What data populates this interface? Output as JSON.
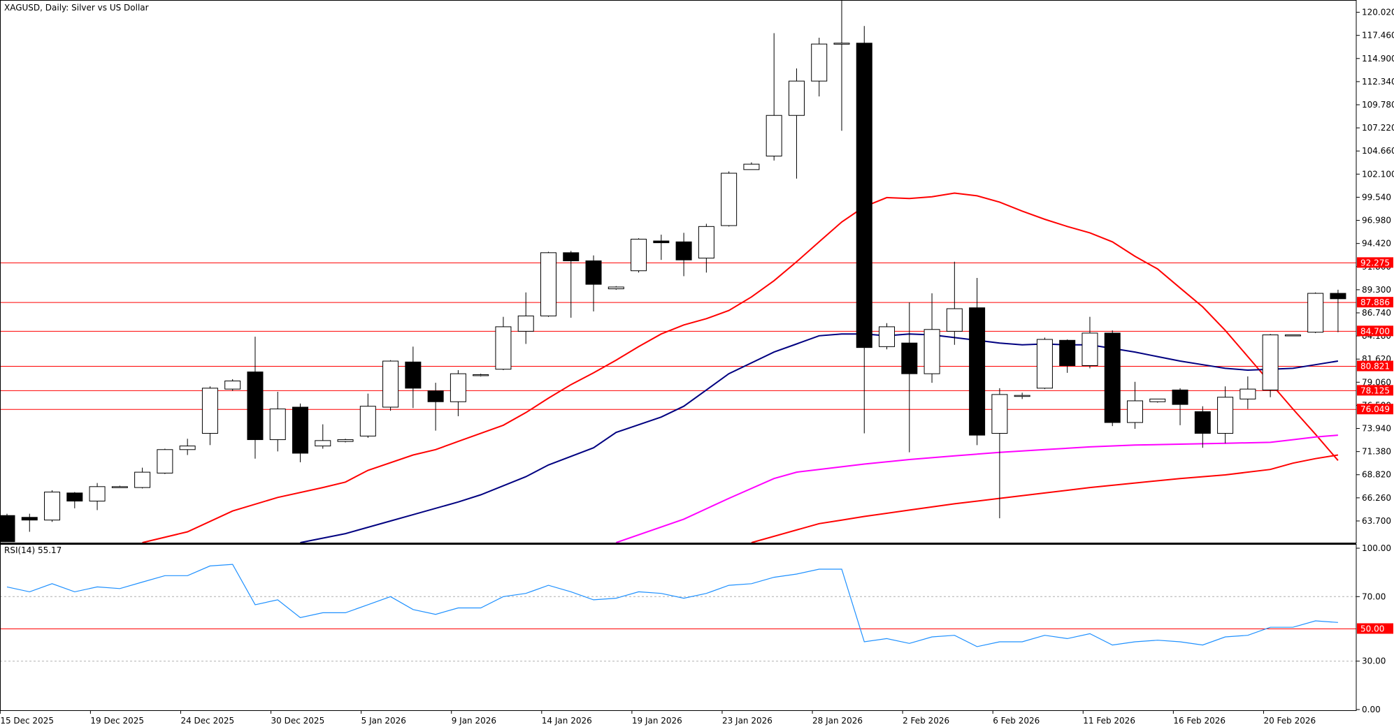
{
  "chart_data": {
    "type": "candlestick",
    "symbol_label": "XAGUSD, Daily:  Silver vs US Dollar",
    "price_ticks": [
      "120.020",
      "117.460",
      "114.900",
      "112.340",
      "109.780",
      "107.220",
      "104.660",
      "102.100",
      "99.540",
      "96.980",
      "94.420",
      "91.860",
      "89.300",
      "86.740",
      "84.180",
      "81.620",
      "79.060",
      "76.500",
      "73.940",
      "71.380",
      "68.820",
      "66.260",
      "63.700"
    ],
    "price_range": [
      61.3,
      121.3
    ],
    "date_labels": [
      "15 Dec 2025",
      "19 Dec 2025",
      "24 Dec 2025",
      "30 Dec 2025",
      "5 Jan 2026",
      "9 Jan 2026",
      "14 Jan 2026",
      "19 Jan 2026",
      "23 Jan 2026",
      "28 Jan 2026",
      "2 Feb 2026",
      "6 Feb 2026",
      "11 Feb 2026",
      "16 Feb 2026",
      "20 Feb 2026"
    ],
    "levels": [
      {
        "value": 92.275,
        "label": "92.275"
      },
      {
        "value": 87.886,
        "label": "87.886"
      },
      {
        "value": 84.7,
        "label": "84.700"
      },
      {
        "value": 80.821,
        "label": "80.821"
      },
      {
        "value": 78.125,
        "label": "78.125"
      },
      {
        "value": 76.049,
        "label": "76.049"
      }
    ],
    "level_color": "#ff0000",
    "candles": [
      {
        "o": 64.3,
        "h": 64.5,
        "l": 61.4,
        "c": 61.4
      },
      {
        "o": 64.1,
        "h": 64.5,
        "l": 62.5,
        "c": 63.8
      },
      {
        "o": 63.8,
        "h": 67.1,
        "l": 63.6,
        "c": 66.9
      },
      {
        "o": 66.8,
        "h": 66.9,
        "l": 65.1,
        "c": 65.9
      },
      {
        "o": 65.9,
        "h": 67.9,
        "l": 64.9,
        "c": 67.5
      },
      {
        "o": 67.4,
        "h": 67.6,
        "l": 67.4,
        "c": 67.5
      },
      {
        "o": 67.4,
        "h": 69.6,
        "l": 67.3,
        "c": 69.1
      },
      {
        "o": 69.0,
        "h": 71.7,
        "l": 68.9,
        "c": 71.6
      },
      {
        "o": 71.6,
        "h": 72.8,
        "l": 71.0,
        "c": 72.0
      },
      {
        "o": 73.4,
        "h": 78.6,
        "l": 72.1,
        "c": 78.4
      },
      {
        "o": 78.3,
        "h": 79.4,
        "l": 78.1,
        "c": 79.2
      },
      {
        "o": 80.2,
        "h": 84.1,
        "l": 70.6,
        "c": 72.7
      },
      {
        "o": 72.7,
        "h": 78.0,
        "l": 71.4,
        "c": 76.1
      },
      {
        "o": 76.3,
        "h": 76.7,
        "l": 70.2,
        "c": 71.2
      },
      {
        "o": 72.0,
        "h": 74.4,
        "l": 71.7,
        "c": 72.6
      },
      {
        "o": 72.5,
        "h": 72.8,
        "l": 72.4,
        "c": 72.7
      },
      {
        "o": 73.1,
        "h": 77.8,
        "l": 72.9,
        "c": 76.4
      },
      {
        "o": 76.3,
        "h": 81.5,
        "l": 75.9,
        "c": 81.4
      },
      {
        "o": 81.3,
        "h": 83.0,
        "l": 76.2,
        "c": 78.4
      },
      {
        "o": 78.1,
        "h": 79.0,
        "l": 73.7,
        "c": 76.9
      },
      {
        "o": 76.9,
        "h": 80.4,
        "l": 75.3,
        "c": 80.0
      },
      {
        "o": 79.9,
        "h": 80.0,
        "l": 79.7,
        "c": 79.9
      },
      {
        "o": 80.5,
        "h": 86.3,
        "l": 80.4,
        "c": 85.2
      },
      {
        "o": 84.7,
        "h": 89.0,
        "l": 83.3,
        "c": 86.4
      },
      {
        "o": 86.4,
        "h": 93.5,
        "l": 86.3,
        "c": 93.4
      },
      {
        "o": 93.4,
        "h": 93.6,
        "l": 86.2,
        "c": 92.5
      },
      {
        "o": 92.5,
        "h": 93.1,
        "l": 86.9,
        "c": 89.9
      },
      {
        "o": 89.4,
        "h": 89.7,
        "l": 89.3,
        "c": 89.6
      },
      {
        "o": 91.4,
        "h": 95.0,
        "l": 91.2,
        "c": 94.9
      },
      {
        "o": 94.7,
        "h": 95.4,
        "l": 92.6,
        "c": 94.5
      },
      {
        "o": 94.6,
        "h": 95.6,
        "l": 90.8,
        "c": 92.6
      },
      {
        "o": 92.8,
        "h": 96.6,
        "l": 91.2,
        "c": 96.3
      },
      {
        "o": 96.4,
        "h": 102.4,
        "l": 96.3,
        "c": 102.2
      },
      {
        "o": 102.6,
        "h": 103.4,
        "l": 102.6,
        "c": 103.2
      },
      {
        "o": 104.1,
        "h": 117.7,
        "l": 103.6,
        "c": 108.6
      },
      {
        "o": 108.6,
        "h": 113.8,
        "l": 101.6,
        "c": 112.4
      },
      {
        "o": 112.4,
        "h": 117.2,
        "l": 110.7,
        "c": 116.5
      },
      {
        "o": 116.5,
        "h": 121.6,
        "l": 106.9,
        "c": 116.6
      },
      {
        "o": 116.6,
        "h": 118.5,
        "l": 73.4,
        "c": 82.9
      },
      {
        "o": 83.0,
        "h": 85.6,
        "l": 82.7,
        "c": 85.2
      },
      {
        "o": 83.4,
        "h": 87.9,
        "l": 71.3,
        "c": 80.0
      },
      {
        "o": 80.0,
        "h": 88.9,
        "l": 79.0,
        "c": 84.9
      },
      {
        "o": 84.7,
        "h": 92.4,
        "l": 83.2,
        "c": 87.2
      },
      {
        "o": 87.3,
        "h": 90.6,
        "l": 72.1,
        "c": 73.2
      },
      {
        "o": 73.4,
        "h": 78.4,
        "l": 64.0,
        "c": 77.7
      },
      {
        "o": 77.5,
        "h": 77.9,
        "l": 77.2,
        "c": 77.6
      },
      {
        "o": 78.4,
        "h": 84.0,
        "l": 78.3,
        "c": 83.8
      },
      {
        "o": 83.7,
        "h": 83.8,
        "l": 80.1,
        "c": 80.9
      },
      {
        "o": 80.9,
        "h": 86.3,
        "l": 80.6,
        "c": 84.5
      },
      {
        "o": 84.5,
        "h": 84.8,
        "l": 74.2,
        "c": 74.6
      },
      {
        "o": 74.6,
        "h": 79.1,
        "l": 73.9,
        "c": 77.0
      },
      {
        "o": 76.9,
        "h": 77.2,
        "l": 76.8,
        "c": 77.2
      },
      {
        "o": 78.2,
        "h": 78.4,
        "l": 74.3,
        "c": 76.6
      },
      {
        "o": 75.8,
        "h": 76.4,
        "l": 71.8,
        "c": 73.4
      },
      {
        "o": 73.4,
        "h": 78.6,
        "l": 72.3,
        "c": 77.4
      },
      {
        "o": 77.2,
        "h": 79.7,
        "l": 76.1,
        "c": 78.3
      },
      {
        "o": 78.2,
        "h": 84.4,
        "l": 77.4,
        "c": 84.3
      },
      {
        "o": 84.3,
        "h": 84.3,
        "l": 84.2,
        "c": 84.3
      },
      {
        "o": 84.6,
        "h": 89.0,
        "l": 84.5,
        "c": 88.9
      },
      {
        "o": 88.9,
        "h": 89.3,
        "l": 84.6,
        "c": 88.3
      }
    ],
    "ma_series": [
      {
        "color": "#ff0000",
        "points": [
          [
            6,
            61.3
          ],
          [
            8,
            62.5
          ],
          [
            10,
            64.8
          ],
          [
            12,
            66.3
          ],
          [
            14,
            67.4
          ],
          [
            15,
            68.0
          ],
          [
            16,
            69.3
          ],
          [
            18,
            71.0
          ],
          [
            19,
            71.6
          ],
          [
            20,
            72.5
          ],
          [
            22,
            74.3
          ],
          [
            23,
            75.7
          ],
          [
            24,
            77.3
          ],
          [
            25,
            78.8
          ],
          [
            26,
            80.1
          ],
          [
            27,
            81.5
          ],
          [
            28,
            83.0
          ],
          [
            29,
            84.4
          ],
          [
            30,
            85.4
          ],
          [
            31,
            86.1
          ],
          [
            32,
            87.0
          ],
          [
            33,
            88.5
          ],
          [
            34,
            90.3
          ],
          [
            35,
            92.4
          ],
          [
            36,
            94.6
          ],
          [
            37,
            96.8
          ],
          [
            38,
            98.5
          ],
          [
            39,
            99.5
          ],
          [
            40,
            99.4
          ],
          [
            41,
            99.6
          ],
          [
            42,
            100.0
          ],
          [
            43,
            99.7
          ],
          [
            44,
            99.0
          ],
          [
            45,
            98.0
          ],
          [
            46,
            97.1
          ],
          [
            47,
            96.3
          ],
          [
            48,
            95.6
          ],
          [
            49,
            94.6
          ],
          [
            50,
            93.0
          ],
          [
            51,
            91.6
          ],
          [
            52,
            89.5
          ],
          [
            53,
            87.4
          ],
          [
            54,
            84.8
          ],
          [
            55,
            81.9
          ],
          [
            56,
            79.0
          ],
          [
            57,
            76.1
          ],
          [
            58,
            73.3
          ],
          [
            59,
            70.4
          ]
        ]
      },
      {
        "color": "#000080",
        "points": [
          [
            13,
            61.3
          ],
          [
            15,
            62.3
          ],
          [
            17,
            63.7
          ],
          [
            18,
            64.4
          ],
          [
            20,
            65.8
          ],
          [
            21,
            66.6
          ],
          [
            23,
            68.6
          ],
          [
            24,
            69.9
          ],
          [
            26,
            71.8
          ],
          [
            27,
            73.5
          ],
          [
            29,
            75.2
          ],
          [
            30,
            76.4
          ],
          [
            31,
            78.2
          ],
          [
            32,
            80.0
          ],
          [
            34,
            82.4
          ],
          [
            35,
            83.3
          ],
          [
            36,
            84.2
          ],
          [
            37,
            84.4
          ],
          [
            38,
            84.4
          ],
          [
            39,
            84.2
          ],
          [
            40,
            84.4
          ],
          [
            41,
            84.3
          ],
          [
            42,
            84.0
          ],
          [
            43,
            83.7
          ],
          [
            44,
            83.4
          ],
          [
            45,
            83.2
          ],
          [
            46,
            83.3
          ],
          [
            47,
            83.2
          ],
          [
            48,
            83.2
          ],
          [
            49,
            82.8
          ],
          [
            50,
            82.4
          ],
          [
            51,
            81.9
          ],
          [
            52,
            81.4
          ],
          [
            53,
            81.0
          ],
          [
            54,
            80.6
          ],
          [
            55,
            80.4
          ],
          [
            56,
            80.5
          ],
          [
            57,
            80.6
          ],
          [
            58,
            81.0
          ],
          [
            59,
            81.4
          ]
        ]
      },
      {
        "color": "#ff00ff",
        "points": [
          [
            27,
            61.3
          ],
          [
            30,
            63.9
          ],
          [
            32,
            66.2
          ],
          [
            34,
            68.4
          ],
          [
            35,
            69.1
          ],
          [
            36,
            69.4
          ],
          [
            38,
            70.0
          ],
          [
            40,
            70.5
          ],
          [
            42,
            70.9
          ],
          [
            44,
            71.3
          ],
          [
            46,
            71.6
          ],
          [
            48,
            71.9
          ],
          [
            50,
            72.1
          ],
          [
            52,
            72.2
          ],
          [
            54,
            72.3
          ],
          [
            56,
            72.4
          ],
          [
            57,
            72.7
          ],
          [
            58,
            73.0
          ],
          [
            59,
            73.2
          ]
        ]
      },
      {
        "color": "#ff0000",
        "points": [
          [
            33,
            61.3
          ],
          [
            36,
            63.4
          ],
          [
            37,
            63.8
          ],
          [
            38,
            64.2
          ],
          [
            40,
            64.9
          ],
          [
            42,
            65.6
          ],
          [
            44,
            66.2
          ],
          [
            46,
            66.8
          ],
          [
            48,
            67.4
          ],
          [
            50,
            67.9
          ],
          [
            52,
            68.4
          ],
          [
            54,
            68.8
          ],
          [
            56,
            69.4
          ],
          [
            57,
            70.1
          ],
          [
            58,
            70.6
          ],
          [
            59,
            71.0
          ]
        ]
      }
    ],
    "rsi": {
      "label": "RSI(14) 55.17",
      "range": [
        0,
        100
      ],
      "ticks": [
        "100.00",
        "70.00",
        "30.00",
        "0.00"
      ],
      "level": {
        "value": 50,
        "label": "50.00"
      },
      "color": "#1e90ff",
      "values": [
        76,
        73,
        78,
        73,
        76,
        75,
        79,
        83,
        83,
        89,
        90,
        65,
        68,
        57,
        60,
        60,
        65,
        70,
        62,
        59,
        63,
        63,
        70,
        72,
        77,
        73,
        68,
        69,
        73,
        72,
        69,
        72,
        77,
        78,
        82,
        84,
        87,
        87,
        42,
        44,
        41,
        45,
        46,
        39,
        42,
        42,
        46,
        44,
        47,
        40,
        42,
        43,
        42,
        40,
        45,
        46,
        51,
        51,
        55,
        54
      ]
    }
  }
}
